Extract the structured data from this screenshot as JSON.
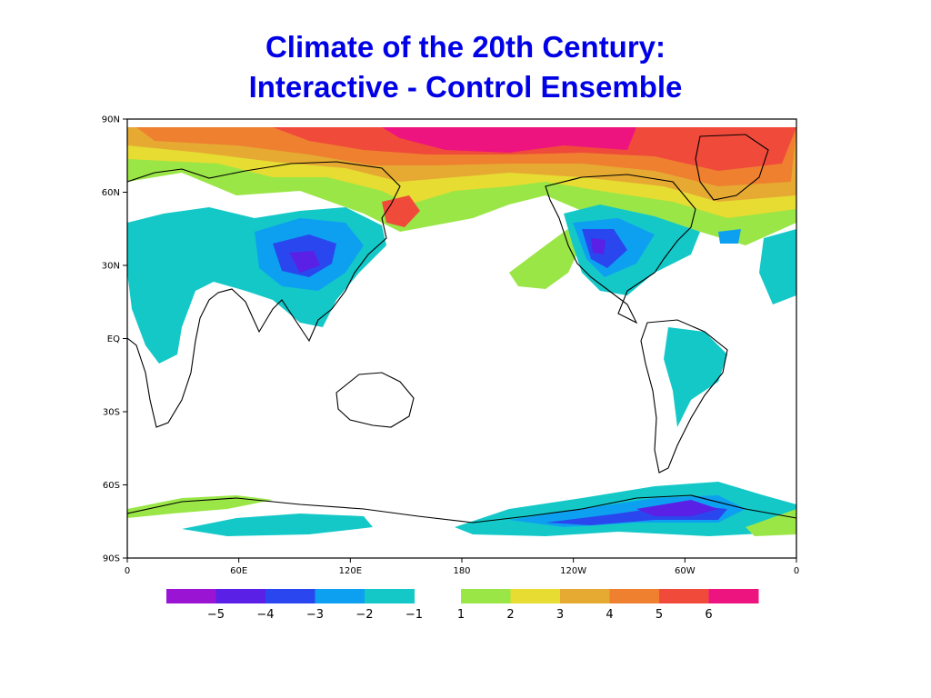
{
  "title": {
    "line1": "Climate of the 20th Century:",
    "line2": "Interactive - Control Ensemble"
  },
  "map": {
    "lon_ticks": [
      "0",
      "60E",
      "120E",
      "180",
      "120W",
      "60W",
      "0"
    ],
    "lat_ticks": [
      "90N",
      "60N",
      "30N",
      "EQ",
      "30S",
      "60S",
      "90S"
    ]
  },
  "colorbar": {
    "negative": {
      "colors": [
        "#9a14d4",
        "#5a20e6",
        "#2a46ee",
        "#0ea0f0",
        "#14c8c8"
      ],
      "labels": [
        "−5",
        "−4",
        "−3",
        "−2",
        "−1"
      ]
    },
    "positive": {
      "colors": [
        "#9ae646",
        "#e6dc32",
        "#e6aa32",
        "#ee8030",
        "#f04a3a",
        "#ee1480"
      ],
      "labels": [
        "1",
        "2",
        "3",
        "4",
        "5",
        "6"
      ]
    }
  },
  "colors": {
    "title": "#0000e6",
    "coastline": "#000000"
  }
}
